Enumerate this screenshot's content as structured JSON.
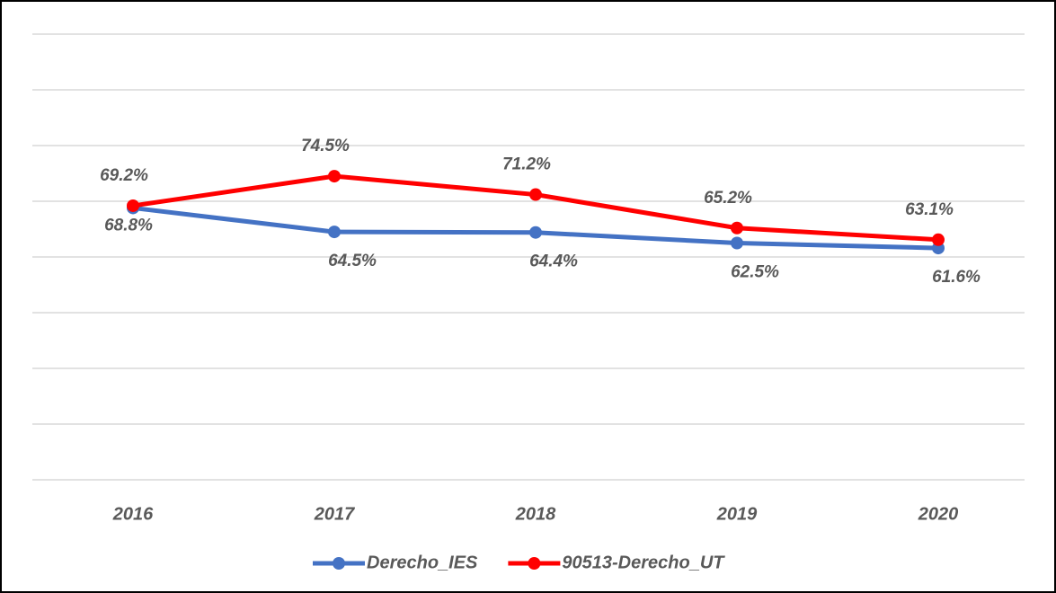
{
  "chart_data": {
    "type": "line",
    "categories": [
      "2016",
      "2017",
      "2018",
      "2019",
      "2020"
    ],
    "series": [
      {
        "name": "Derecho_IES",
        "color": "#4472c4",
        "values": [
          68.8,
          64.5,
          64.4,
          62.5,
          61.6
        ],
        "value_labels": [
          "68.8%",
          "64.5%",
          "64.4%",
          "62.5%",
          "61.6%"
        ]
      },
      {
        "name": "90513-Derecho_UT",
        "color": "#ff0000",
        "values": [
          69.2,
          74.5,
          71.2,
          65.2,
          63.1
        ],
        "value_labels": [
          "69.2%",
          "74.5%",
          "71.2%",
          "65.2%",
          "63.1%"
        ]
      }
    ],
    "ylim": [
      20,
      100
    ],
    "yticks": [
      20,
      30,
      40,
      50,
      60,
      70,
      80,
      90,
      100
    ],
    "grid": true,
    "ytick_labels": false,
    "legend": "bottom"
  }
}
